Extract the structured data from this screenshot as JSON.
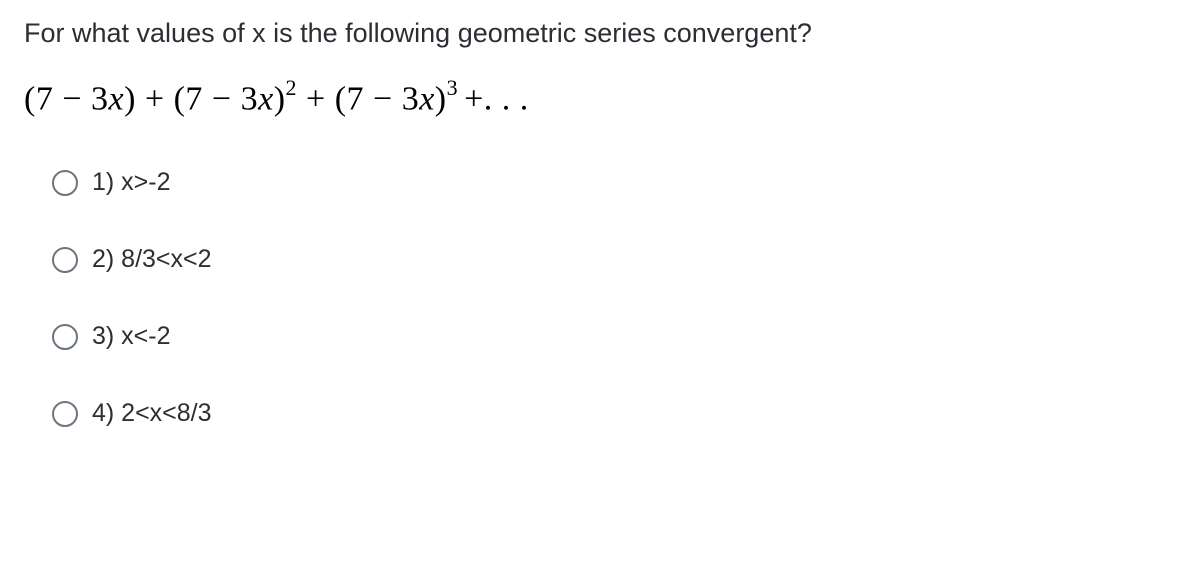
{
  "question": {
    "prompt": "For what values of x is the following geometric series  convergent?",
    "equation_html": "(7 − 3<span class='ital'>x</span>) + (7 − 3<span class='ital'>x</span>)<sup>2</sup> + (7 − 3<span class='ital'>x</span>)<sup>3 </sup>+. . ."
  },
  "options": [
    {
      "label": "1) x>-2"
    },
    {
      "label": "2) 8/3<x<2"
    },
    {
      "label": "3) x<-2"
    },
    {
      "label": "4) 2<x<8/3"
    }
  ],
  "style": {
    "background": "#ffffff",
    "text_color": "#2b2f33",
    "radio_border": "#6c757d",
    "question_fontsize": 27,
    "equation_fontsize": 34,
    "option_fontsize": 25
  }
}
